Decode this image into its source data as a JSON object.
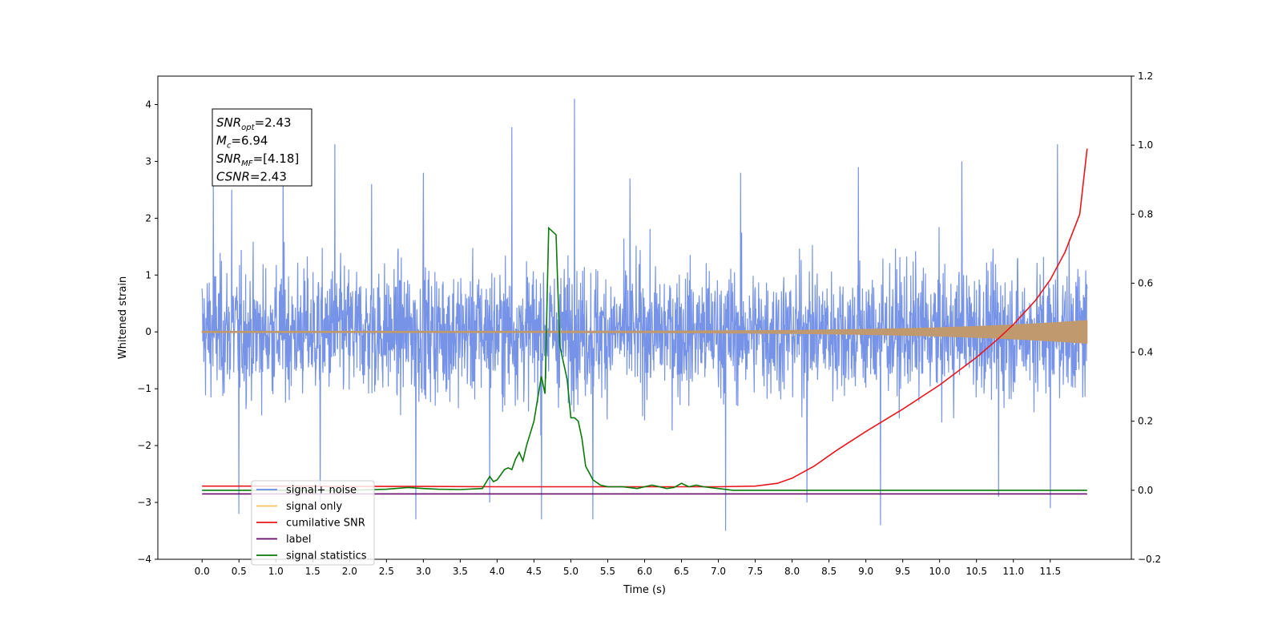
{
  "chart_data": {
    "type": "line",
    "title": "",
    "xlabel": "Time (s)",
    "ylabel": "Whitened strain",
    "y2label": "",
    "xlim": [
      -0.6,
      12.6
    ],
    "ylim": [
      -4.0,
      4.5
    ],
    "y2lim": [
      -0.2,
      1.2
    ],
    "xticks": [
      0.0,
      0.5,
      1.0,
      1.5,
      2.0,
      2.5,
      3.0,
      3.5,
      4.0,
      4.5,
      5.0,
      5.5,
      6.0,
      6.5,
      7.0,
      7.5,
      8.0,
      8.5,
      9.0,
      9.5,
      10.0,
      10.5,
      11.0,
      11.5
    ],
    "xtick_labels": [
      "0.0",
      "0.5",
      "1.0",
      "1.5",
      "2.0",
      "2.5",
      "3.0",
      "3.5",
      "4.0",
      "4.5",
      "5.0",
      "5.5",
      "6.0",
      "6.5",
      "7.0",
      "7.5",
      "8.0",
      "8.5",
      "9.0",
      "9.5",
      "10.0",
      "10.5",
      "11.0",
      "11.5"
    ],
    "yticks": [
      -4,
      -3,
      -2,
      -1,
      0,
      1,
      2,
      3,
      4
    ],
    "ytick_labels": [
      "−4",
      "−3",
      "−2",
      "−1",
      "0",
      "1",
      "2",
      "3",
      "4"
    ],
    "y2ticks": [
      -0.2,
      0.0,
      0.2,
      0.4,
      0.6,
      0.8,
      1.0,
      1.2
    ],
    "y2tick_labels": [
      "−0.2",
      "0.0",
      "0.2",
      "0.4",
      "0.6",
      "0.8",
      "1.0",
      "1.2"
    ],
    "grid": false,
    "legend_position": "bottom-left",
    "annotation": {
      "lines": [
        {
          "base": "SNR",
          "sub": "opt",
          "rest": "=2.43"
        },
        {
          "base": "M",
          "sub": "c",
          "rest": "=6.94"
        },
        {
          "base": "SNR",
          "sub": "MF",
          "rest": "=[4.18]"
        },
        {
          "base": "CSNR",
          "sub": "",
          "rest": "=2.43"
        }
      ]
    },
    "series": [
      {
        "name": "signal+ noise",
        "color": "#6a8ae6",
        "axis": "left",
        "style": "noise",
        "x_range": [
          0.0,
          12.0
        ],
        "amplitude_typical": 1.3,
        "spikes": [
          [
            0.15,
            2.6
          ],
          [
            0.4,
            2.5
          ],
          [
            1.1,
            2.9
          ],
          [
            1.8,
            3.3
          ],
          [
            2.3,
            2.6
          ],
          [
            3.0,
            2.8
          ],
          [
            4.2,
            3.6
          ],
          [
            5.05,
            4.1
          ],
          [
            5.8,
            2.7
          ],
          [
            7.3,
            2.8
          ],
          [
            8.9,
            2.9
          ],
          [
            10.3,
            3.0
          ],
          [
            11.6,
            3.3
          ],
          [
            0.5,
            -3.2
          ],
          [
            1.6,
            -3.0
          ],
          [
            2.9,
            -3.3
          ],
          [
            3.9,
            -3.0
          ],
          [
            4.6,
            -3.3
          ],
          [
            5.3,
            -3.3
          ],
          [
            7.1,
            -3.5
          ],
          [
            8.2,
            -3.0
          ],
          [
            9.2,
            -3.4
          ],
          [
            10.8,
            -2.9
          ],
          [
            11.5,
            -3.1
          ]
        ]
      },
      {
        "name": "signal only",
        "color": "#f5c35a",
        "axis": "left",
        "style": "chirp",
        "x_range": [
          0.0,
          12.0
        ]
      },
      {
        "name": "cumilative SNR",
        "color": "#e8161a",
        "axis": "right",
        "x": [
          0.0,
          1.0,
          2.0,
          3.0,
          4.0,
          5.0,
          6.0,
          7.0,
          7.5,
          7.8,
          8.0,
          8.3,
          8.6,
          9.0,
          9.5,
          10.0,
          10.5,
          10.8,
          11.0,
          11.3,
          11.5,
          11.7,
          11.9,
          12.0
        ],
        "values": [
          0.012,
          0.012,
          0.011,
          0.011,
          0.01,
          0.01,
          0.01,
          0.01,
          0.012,
          0.02,
          0.035,
          0.07,
          0.115,
          0.17,
          0.235,
          0.305,
          0.385,
          0.44,
          0.48,
          0.55,
          0.61,
          0.69,
          0.8,
          0.99
        ]
      },
      {
        "name": "label",
        "color": "#6a0a6a",
        "axis": "left",
        "x": [
          0.0,
          12.0
        ],
        "values": [
          -2.85,
          -2.85
        ]
      },
      {
        "name": "signal statistics",
        "color": "#0a7a0a",
        "axis": "right",
        "x": [
          0.0,
          1.0,
          2.0,
          2.5,
          2.8,
          3.0,
          3.2,
          3.5,
          3.8,
          3.9,
          3.95,
          4.0,
          4.1,
          4.15,
          4.2,
          4.25,
          4.3,
          4.35,
          4.4,
          4.5,
          4.6,
          4.65,
          4.7,
          4.75,
          4.8,
          4.85,
          4.95,
          5.0,
          5.05,
          5.1,
          5.15,
          5.2,
          5.3,
          5.4,
          5.5,
          5.7,
          5.9,
          6.0,
          6.1,
          6.2,
          6.3,
          6.4,
          6.5,
          6.55,
          6.6,
          6.7,
          6.8,
          7.0,
          7.2,
          7.5,
          8.0,
          9.0,
          10.0,
          11.0,
          11.5,
          12.0
        ],
        "values": [
          0.0,
          0.0,
          0.0,
          0.003,
          0.008,
          0.005,
          0.003,
          0.002,
          0.005,
          0.04,
          0.025,
          0.03,
          0.06,
          0.065,
          0.06,
          0.09,
          0.11,
          0.085,
          0.13,
          0.2,
          0.33,
          0.28,
          0.76,
          0.75,
          0.74,
          0.42,
          0.32,
          0.21,
          0.21,
          0.2,
          0.15,
          0.07,
          0.03,
          0.015,
          0.01,
          0.01,
          0.005,
          0.01,
          0.015,
          0.01,
          0.005,
          0.008,
          0.02,
          0.015,
          0.01,
          0.015,
          0.01,
          0.005,
          0.0,
          0.0,
          0.0,
          0.0,
          0.0,
          0.0,
          0.0,
          0.0
        ]
      }
    ],
    "legend": [
      {
        "label": "signal+ noise",
        "color": "#6a8ae6"
      },
      {
        "label": "signal only",
        "color": "#f5c35a"
      },
      {
        "label": "cumilative SNR",
        "color": "#e8161a"
      },
      {
        "label": "label",
        "color": "#6a0a6a"
      },
      {
        "label": "signal statistics",
        "color": "#0a7a0a"
      }
    ]
  }
}
